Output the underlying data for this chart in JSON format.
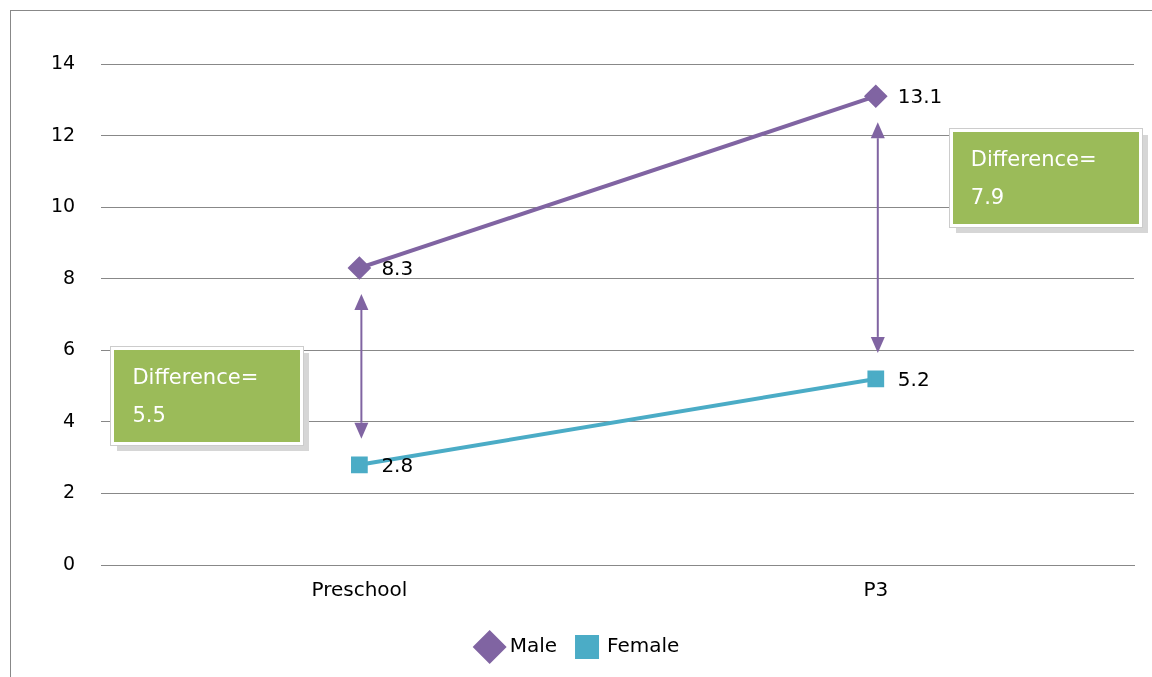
{
  "chart_data": {
    "type": "line",
    "categories": [
      "Preschool",
      "P3"
    ],
    "series": [
      {
        "name": "Male",
        "color": "#8064a2",
        "marker": "diamond",
        "values": [
          8.3,
          13.1
        ]
      },
      {
        "name": "Female",
        "color": "#4bacc6",
        "marker": "square",
        "values": [
          2.8,
          5.2
        ]
      }
    ],
    "ylim": [
      0,
      14
    ],
    "yticks": [
      0,
      2,
      4,
      6,
      8,
      10,
      12,
      14
    ],
    "grid": "y",
    "legend": "bottom",
    "data_labels": true,
    "annotations": [
      "Difference= 5.5",
      "Difference= 7.9"
    ]
  }
}
